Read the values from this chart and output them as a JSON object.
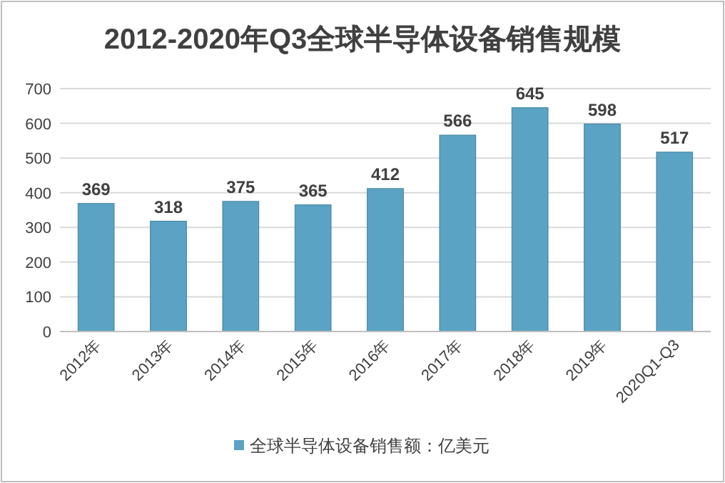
{
  "chart_data": {
    "type": "bar",
    "title": "2012-2020年Q3全球半导体设备销售规模",
    "categories": [
      "2012年",
      "2013年",
      "2014年",
      "2015年",
      "2016年",
      "2017年",
      "2018年",
      "2019年",
      "2020Q1-Q3"
    ],
    "series": [
      {
        "name": "全球半导体设备销售额：亿美元",
        "color": "#5ba3c4",
        "values": [
          369,
          318,
          375,
          365,
          412,
          566,
          645,
          598,
          517
        ]
      }
    ],
    "ylim": [
      0,
      700
    ],
    "yticks": [
      0,
      100,
      200,
      300,
      400,
      500,
      600,
      700
    ],
    "grid": "y",
    "legend": "bottom",
    "data_labels": true
  }
}
